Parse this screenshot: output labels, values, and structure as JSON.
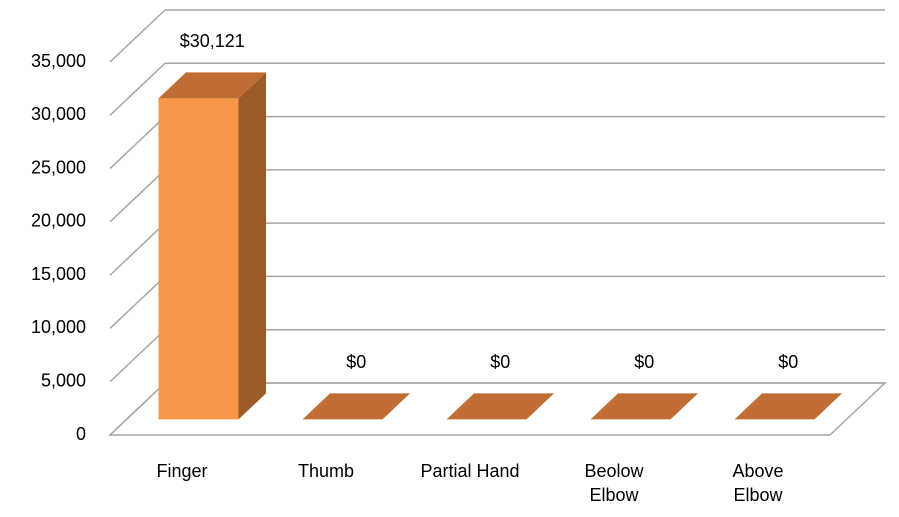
{
  "chart_data": {
    "type": "bar3d",
    "categories": [
      "Finger",
      "Thumb",
      "Partial Hand",
      "Beolow Elbow",
      "Above Elbow"
    ],
    "values": [
      30121,
      0,
      0,
      0,
      0
    ],
    "value_labels": [
      "$30,121",
      "$0",
      "$0",
      "$0",
      "$0"
    ],
    "color": "#f79646",
    "ylim": [
      0,
      35000
    ],
    "yticks": [
      0,
      {
        "value": 5000,
        "label": "5,000"
      },
      {
        "value": 10000,
        "label": "10,000"
      },
      {
        "value": 15000,
        "label": "15,000"
      },
      {
        "value": 20000,
        "label": "20,000"
      },
      {
        "value": 25000,
        "label": "25,000"
      },
      {
        "value": 30000,
        "label": "30,000"
      },
      {
        "value": 35000,
        "label": "35,000"
      }
    ],
    "grid": true
  }
}
